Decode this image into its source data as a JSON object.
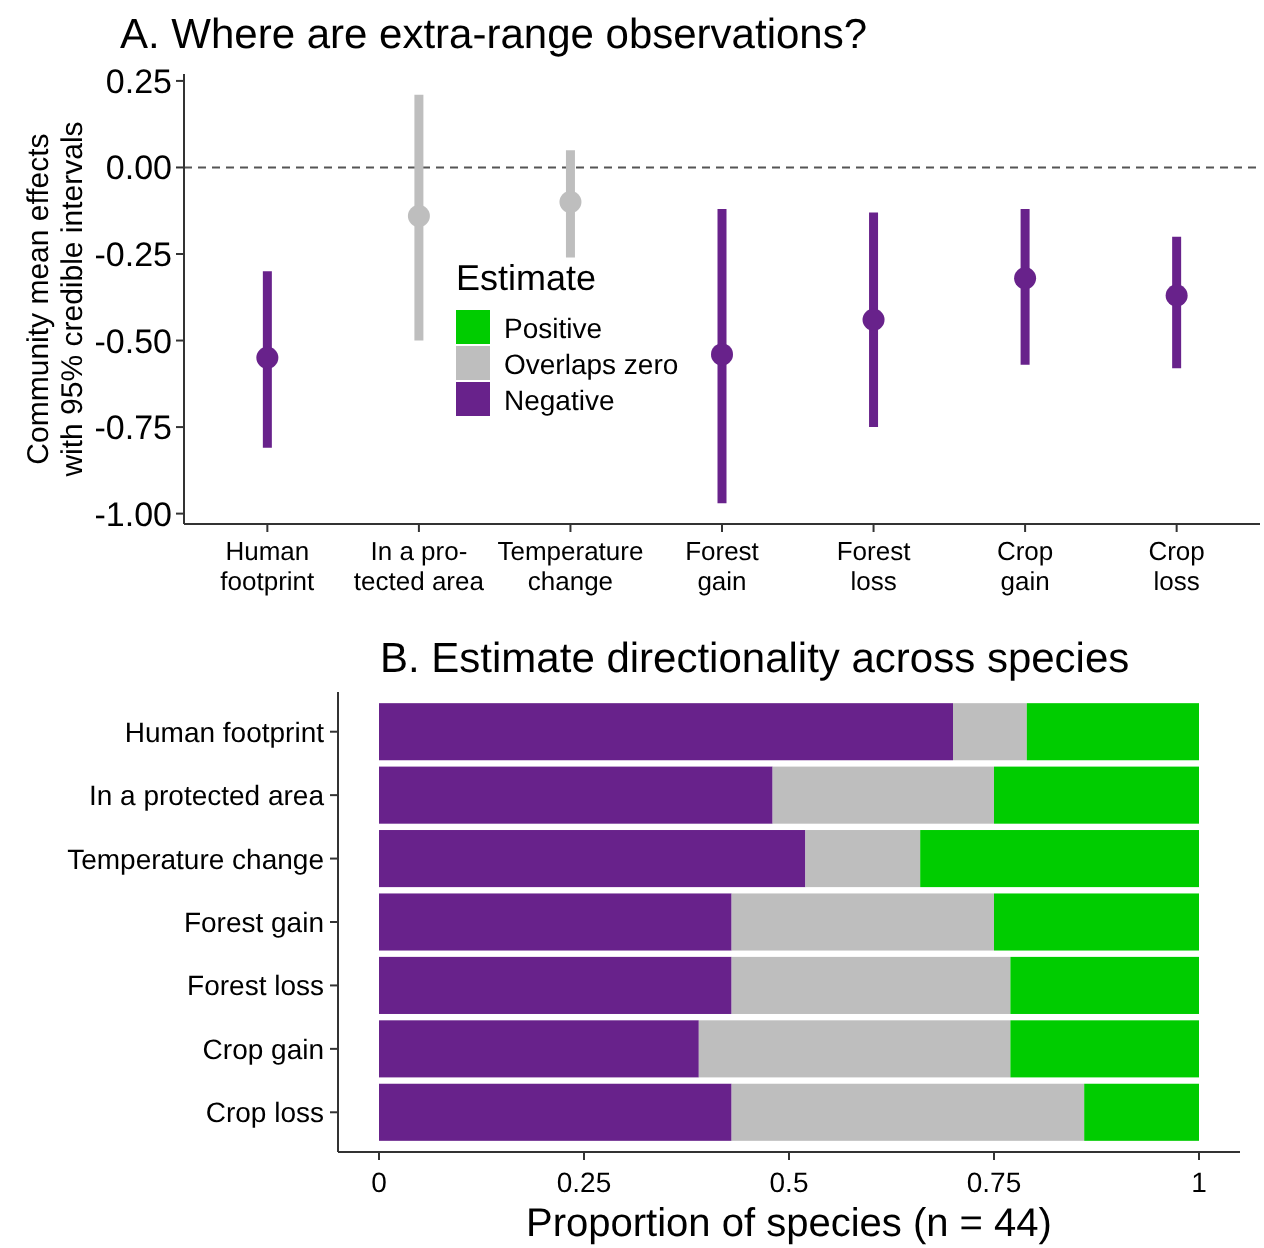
{
  "chart_data": [
    {
      "type": "scatter",
      "title": "A. Where are extra-range observations?",
      "ylabel": "Community mean effects\nwith 95% credible intervals",
      "legend_title": "Estimate",
      "legend": "center",
      "grid": false,
      "marker": "circle",
      "categories": [
        "Human\nfootprint",
        "In a pro-\ntected area",
        "Temperature\nchange",
        "Forest\ngain",
        "Forest\nloss",
        "Crop\ngain",
        "Crop\nloss"
      ],
      "ylim": [
        -1.03,
        0.27
      ],
      "yticks": [
        {
          "value": 0.25,
          "label": "0.25"
        },
        {
          "value": 0,
          "label": "0.00"
        },
        {
          "value": -0.25,
          "label": "-0.25"
        },
        {
          "value": -0.5,
          "label": "-0.50"
        },
        {
          "value": -0.75,
          "label": "-0.75"
        },
        {
          "value": -1,
          "label": "-1.00"
        }
      ],
      "ref_lines": [
        {
          "axis": "y",
          "value": 0,
          "line_style": "dashed",
          "color": "#555555"
        }
      ],
      "series": [
        {
          "name": "Positive",
          "color": "#00cc00",
          "values": [
            null,
            null,
            null,
            null,
            null,
            null,
            null
          ],
          "errors": [
            null,
            null,
            null,
            null,
            null,
            null,
            null
          ]
        },
        {
          "name": "Overlaps zero",
          "color": "#bebebe",
          "values": [
            null,
            -0.14,
            -0.1,
            null,
            null,
            null,
            null
          ],
          "errors": [
            null,
            [
              -0.5,
              0.21
            ],
            [
              -0.26,
              0.05
            ],
            null,
            null,
            null,
            null
          ]
        },
        {
          "name": "Negative",
          "color": "#68228b",
          "values": [
            -0.55,
            null,
            null,
            -0.54,
            -0.44,
            -0.32,
            -0.37
          ],
          "errors": [
            [
              -0.81,
              -0.3
            ],
            null,
            null,
            [
              -0.97,
              -0.12
            ],
            [
              -0.75,
              -0.13
            ],
            [
              -0.57,
              -0.12
            ],
            [
              -0.58,
              -0.2
            ]
          ]
        }
      ]
    },
    {
      "type": "bar",
      "orientation": "horizontal",
      "stacked": true,
      "title": "B. Estimate directionality across species",
      "xlabel": "Proportion of species (n = 44)",
      "grid": false,
      "categories": [
        "Human footprint",
        "In a protected area",
        "Temperature change",
        "Forest gain",
        "Forest loss",
        "Crop gain",
        "Crop loss"
      ],
      "xlim": [
        -0.05,
        1.05
      ],
      "xticks": [
        0,
        0.25,
        0.5,
        0.75,
        1
      ],
      "series": [
        {
          "color": "#68228b",
          "values": [
            0.7,
            0.48,
            0.52,
            0.43,
            0.43,
            0.39,
            0.43
          ]
        },
        {
          "color": "#bebebe",
          "values": [
            0.09,
            0.27,
            0.14,
            0.32,
            0.34,
            0.38,
            0.43
          ]
        },
        {
          "color": "#00cc00",
          "values": [
            0.21,
            0.25,
            0.34,
            0.25,
            0.23,
            0.23,
            0.14
          ]
        }
      ]
    }
  ]
}
